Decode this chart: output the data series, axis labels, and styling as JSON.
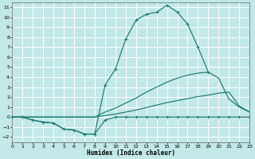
{
  "xlabel": "Humidex (Indice chaleur)",
  "xlim": [
    0,
    23
  ],
  "ylim": [
    -2.5,
    11.5
  ],
  "xticks": [
    0,
    1,
    2,
    3,
    4,
    5,
    6,
    7,
    8,
    9,
    10,
    11,
    12,
    13,
    14,
    15,
    16,
    17,
    18,
    19,
    20,
    21,
    22,
    23
  ],
  "yticks": [
    -2,
    -1,
    0,
    1,
    2,
    3,
    4,
    5,
    6,
    7,
    8,
    9,
    10,
    11
  ],
  "bg_color": "#c2e8e8",
  "grid_color": "#ffffff",
  "line_color": "#1a7a6e",
  "curve1_x": [
    0,
    1,
    2,
    3,
    4,
    5,
    6,
    7,
    8,
    9,
    10,
    11,
    12,
    13,
    14,
    15,
    16,
    17,
    18,
    19
  ],
  "curve1_y": [
    0,
    0,
    -0.3,
    -0.5,
    -0.6,
    -1.2,
    -1.3,
    -1.7,
    -1.7,
    3.2,
    4.8,
    7.8,
    9.7,
    10.3,
    10.5,
    11.2,
    10.5,
    9.3,
    7.0,
    4.5
  ],
  "curve2_x": [
    0,
    1,
    2,
    3,
    4,
    5,
    6,
    7,
    8,
    9,
    10,
    11,
    12,
    13,
    14,
    15,
    16,
    17,
    18,
    19,
    20,
    21,
    22,
    23
  ],
  "curve2_y": [
    0,
    0,
    0,
    0,
    0,
    0,
    0,
    0,
    0,
    0.5,
    0.9,
    1.4,
    1.9,
    2.5,
    3.0,
    3.5,
    3.9,
    4.2,
    4.4,
    4.5,
    3.9,
    1.8,
    1.0,
    0.5
  ],
  "curve3_x": [
    0,
    1,
    2,
    3,
    4,
    5,
    6,
    7,
    8,
    9,
    10,
    11,
    12,
    13,
    14,
    15,
    16,
    17,
    18,
    19,
    20,
    21,
    22,
    23
  ],
  "curve3_y": [
    0,
    0,
    0,
    0,
    0,
    0,
    0,
    0,
    0,
    0.15,
    0.3,
    0.5,
    0.7,
    0.95,
    1.2,
    1.45,
    1.65,
    1.85,
    2.05,
    2.2,
    2.4,
    2.5,
    1.1,
    0.5
  ],
  "curve4_x": [
    0,
    1,
    2,
    3,
    4,
    5,
    6,
    7,
    8,
    9,
    10,
    11,
    12,
    13,
    14,
    15,
    16,
    17,
    18,
    19,
    20,
    21,
    22,
    23
  ],
  "curve4_y": [
    0,
    0,
    -0.3,
    -0.5,
    -0.6,
    -1.2,
    -1.3,
    -1.7,
    -1.7,
    -0.3,
    0,
    0,
    0,
    0,
    0,
    0,
    0,
    0,
    0,
    0,
    0,
    0,
    0,
    0
  ]
}
